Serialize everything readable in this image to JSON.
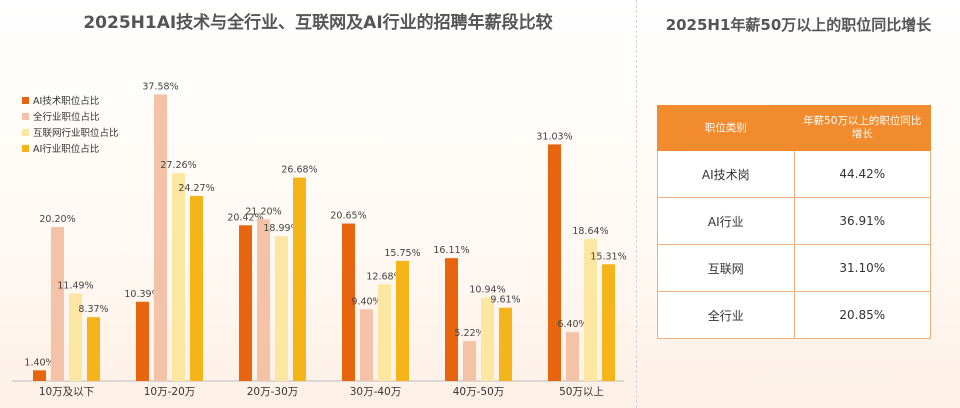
{
  "left": {
    "title": "2025H1AI技术与全行业、互联网及AI行业的招聘年薪段比较"
  },
  "right": {
    "title": "2025H1年薪50万以上的职位同比增长",
    "table": {
      "headers": [
        "职位类别",
        "年薪50万以上的职位同比增长"
      ],
      "rows": [
        [
          "AI技术岗",
          "44.42%"
        ],
        [
          "AI行业",
          "36.91%"
        ],
        [
          "互联网",
          "31.10%"
        ],
        [
          "全行业",
          "20.85%"
        ]
      ]
    },
    "header_color": "#f28a2e"
  },
  "chart_data": {
    "type": "bar",
    "title": "2025H1AI技术与全行业、互联网及AI行业的招聘年薪段比较",
    "xlabel": "",
    "ylabel": "",
    "ylim": [
      0,
      40
    ],
    "grid": false,
    "legend_position": "top-left",
    "categories": [
      "10万及以下",
      "10万-20万",
      "20万-30万",
      "30万-40万",
      "40万-50万",
      "50万以上"
    ],
    "series": [
      {
        "name": "AI技术职位占比",
        "color": "#e8650f",
        "values": [
          1.4,
          10.39,
          20.42,
          20.65,
          16.11,
          31.03
        ]
      },
      {
        "name": "全行业职位占比",
        "color": "#f4c2a6",
        "values": [
          20.2,
          37.58,
          21.2,
          9.4,
          5.22,
          6.4
        ]
      },
      {
        "name": "互联网行业职位占比",
        "color": "#fbe7a2",
        "values": [
          11.49,
          27.26,
          18.99,
          12.68,
          10.94,
          18.64
        ]
      },
      {
        "name": "AI行业职位占比",
        "color": "#f4b41a",
        "values": [
          8.37,
          24.27,
          26.68,
          15.75,
          9.61,
          15.31
        ]
      }
    ],
    "value_labels": [
      [
        "1.40%",
        "10.39%",
        "20.42%",
        "20.65%",
        "16.11%",
        "31.03%"
      ],
      [
        "20.20%",
        "37.58%",
        "21.20%",
        "9.40%",
        "5.22%",
        "6.40%"
      ],
      [
        "11.49%",
        "27.26%",
        "18.99%",
        "12.68%",
        "10.94%",
        "18.64%"
      ],
      [
        "8.37%",
        "24.27%",
        "26.68%",
        "15.75%",
        "9.61%",
        "15.31%"
      ]
    ]
  }
}
